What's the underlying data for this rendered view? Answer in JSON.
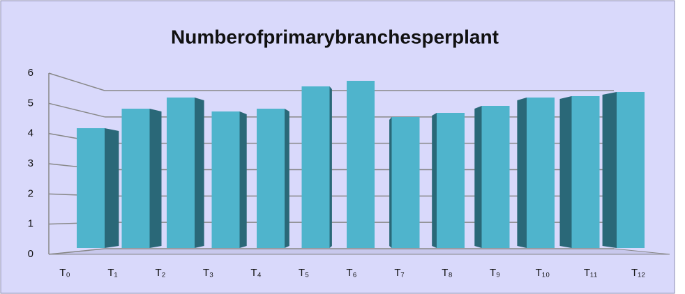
{
  "chart_data": {
    "type": "bar3d",
    "title": "Numberofprimarybranchesperplant",
    "categories": [
      "T₀",
      "T₁",
      "T₂",
      "T₃",
      "T₄",
      "T₅",
      "T₆",
      "T₇",
      "T₈",
      "T₉",
      "T₁₀",
      "T₁₁",
      "T₁₂"
    ],
    "values": [
      4.3,
      5.0,
      5.4,
      4.9,
      5.0,
      5.8,
      6.0,
      4.7,
      4.85,
      5.1,
      5.4,
      5.45,
      5.6
    ],
    "color": "#4fb4cc",
    "side_color": "#2a6878",
    "ylim": [
      0,
      6
    ],
    "yticks": [
      0,
      1,
      2,
      3,
      4,
      5,
      6
    ],
    "grid": true
  }
}
